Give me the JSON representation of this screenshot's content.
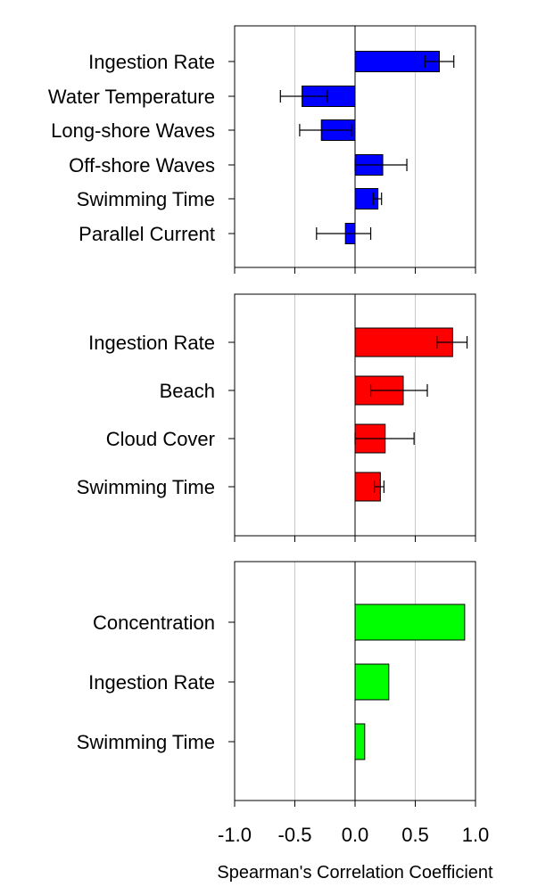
{
  "chart_data": {
    "type": "bar",
    "orientation": "horizontal",
    "xlabel": "Spearman's Correlation Coefficient",
    "xlim": [
      -1.0,
      1.0
    ],
    "x_ticks": [
      "-1.0",
      "-0.5",
      "0.0",
      "0.5",
      "1.0"
    ],
    "x_tick_values": [
      -1.0,
      -0.5,
      0.0,
      0.5,
      1.0
    ],
    "grid": true,
    "panels": [
      {
        "color": "#0000ff",
        "categories": [
          "Ingestion Rate",
          "Water Temperature",
          "Long-shore Waves",
          "Off-shore Waves",
          "Swimming Time",
          "Parallel Current"
        ],
        "values": [
          0.7,
          -0.44,
          -0.28,
          0.23,
          0.19,
          -0.08
        ],
        "error_low": [
          0.58,
          -0.62,
          -0.46,
          0.0,
          0.15,
          -0.32
        ],
        "error_high": [
          0.82,
          -0.23,
          -0.03,
          0.43,
          0.22,
          0.13
        ]
      },
      {
        "color": "#ff0000",
        "categories": [
          "Ingestion Rate",
          "Beach",
          "Cloud Cover",
          "Swimming Time"
        ],
        "values": [
          0.81,
          0.4,
          0.25,
          0.21
        ],
        "error_low": [
          0.68,
          0.13,
          0.0,
          0.16
        ],
        "error_high": [
          0.93,
          0.6,
          0.49,
          0.24
        ]
      },
      {
        "color": "#00ff00",
        "categories": [
          "Concentration",
          "Ingestion Rate",
          "Swimming Time"
        ],
        "values": [
          0.91,
          0.28,
          0.08
        ],
        "error_low": [
          null,
          null,
          null
        ],
        "error_high": [
          null,
          null,
          null
        ]
      }
    ]
  }
}
